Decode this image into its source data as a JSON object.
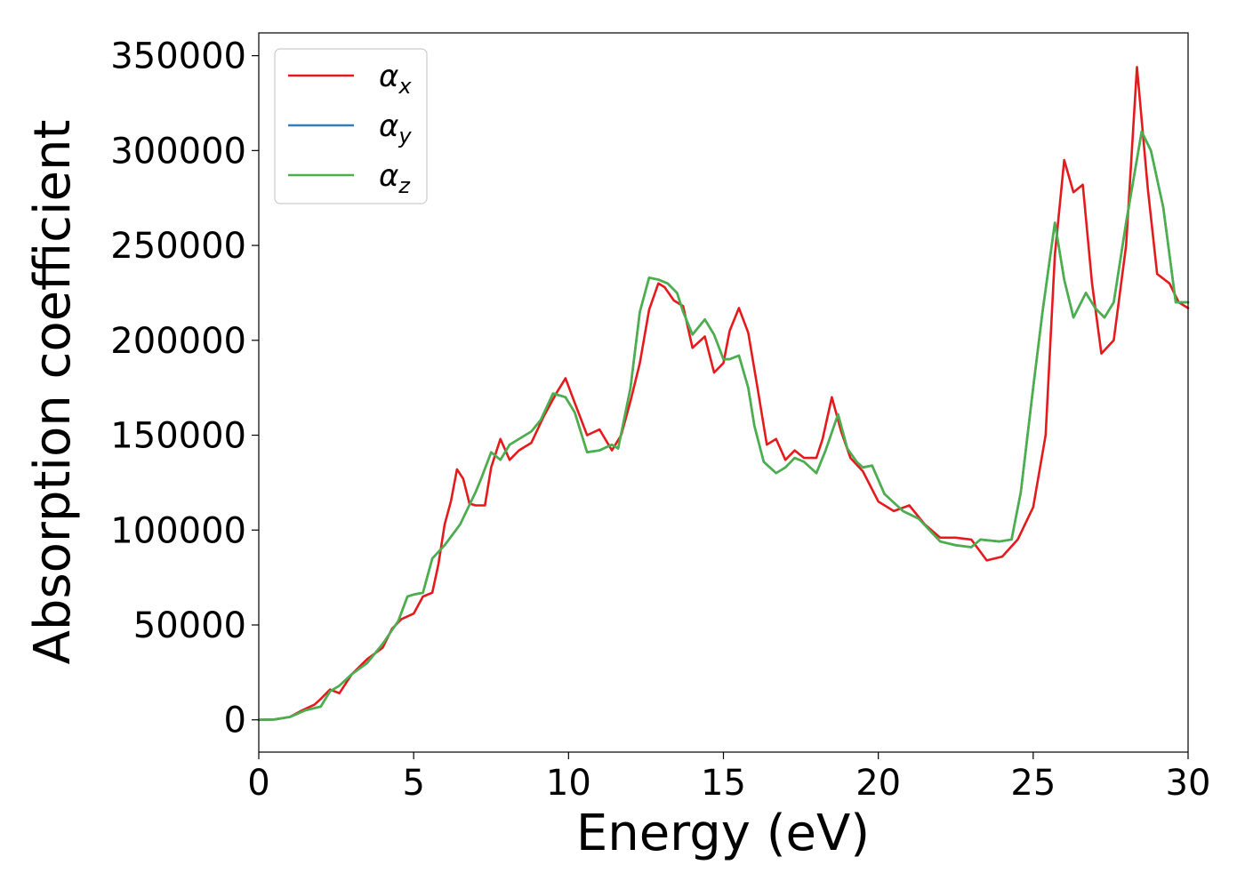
{
  "chart_data": {
    "type": "line",
    "title": "",
    "xlabel": "Energy (eV)",
    "ylabel": "Absorption coefficient",
    "xlim": [
      0,
      30
    ],
    "ylim": [
      -17000,
      362000
    ],
    "xticks": [
      0,
      5,
      10,
      15,
      20,
      25,
      30
    ],
    "yticks": [
      0,
      50000,
      100000,
      150000,
      200000,
      250000,
      300000,
      350000
    ],
    "xtick_labels": [
      "0",
      "5",
      "10",
      "15",
      "20",
      "25",
      "30"
    ],
    "ytick_labels": [
      "0",
      "50000",
      "100000",
      "150000",
      "200000",
      "250000",
      "300000",
      "350000"
    ],
    "grid": false,
    "legend_position": "top-left",
    "series": [
      {
        "name": "α_x",
        "label_main": "α",
        "label_sub": "x",
        "color": "#e41a1c",
        "x": [
          0,
          0.5,
          1.0,
          1.4,
          1.8,
          2.0,
          2.3,
          2.6,
          3.0,
          3.5,
          4.0,
          4.3,
          4.6,
          5.0,
          5.3,
          5.6,
          5.8,
          6.0,
          6.2,
          6.4,
          6.6,
          6.8,
          7.0,
          7.3,
          7.5,
          7.8,
          8.1,
          8.4,
          8.8,
          9.2,
          9.6,
          9.9,
          10.2,
          10.6,
          11.0,
          11.4,
          11.7,
          12.0,
          12.3,
          12.6,
          12.9,
          13.1,
          13.4,
          13.7,
          14.0,
          14.4,
          14.7,
          15.0,
          15.2,
          15.5,
          15.8,
          16.1,
          16.4,
          16.7,
          17.0,
          17.3,
          17.6,
          18.0,
          18.2,
          18.5,
          18.8,
          19.1,
          19.5,
          20.0,
          20.5,
          21.0,
          21.5,
          22.0,
          22.5,
          23.0,
          23.5,
          24.0,
          24.5,
          25.0,
          25.4,
          25.7,
          26.0,
          26.3,
          26.6,
          26.9,
          27.2,
          27.6,
          28.0,
          28.35,
          28.7,
          29.0,
          29.4,
          29.7,
          30.0
        ],
        "values": [
          0,
          200,
          1500,
          5000,
          8000,
          11000,
          16000,
          14000,
          24000,
          32000,
          38000,
          48000,
          53000,
          56000,
          65000,
          67000,
          82000,
          103000,
          115000,
          132000,
          127000,
          114000,
          113000,
          113000,
          133000,
          148000,
          137000,
          142000,
          146000,
          160000,
          172000,
          180000,
          167000,
          150000,
          153000,
          142000,
          150000,
          168000,
          188000,
          216000,
          230000,
          228000,
          221000,
          218000,
          196000,
          202000,
          183000,
          188000,
          205000,
          217000,
          204000,
          175000,
          145000,
          148000,
          137000,
          142000,
          138000,
          138000,
          148000,
          170000,
          152000,
          138000,
          131000,
          115000,
          110000,
          113000,
          103000,
          96000,
          96000,
          95000,
          84000,
          86000,
          95000,
          112000,
          150000,
          245000,
          295000,
          278000,
          282000,
          230000,
          193000,
          200000,
          250000,
          344000,
          280000,
          235000,
          230000,
          220000,
          217000
        ]
      },
      {
        "name": "α_y",
        "label_main": "α",
        "label_sub": "y",
        "color": "#377eb8",
        "x": [
          0,
          0.5,
          1.0,
          1.5,
          2.0,
          2.3,
          2.6,
          3.0,
          3.5,
          4.0,
          4.5,
          4.8,
          5.0,
          5.3,
          5.6,
          6.0,
          6.5,
          7.0,
          7.2,
          7.5,
          7.8,
          8.1,
          8.4,
          8.8,
          9.1,
          9.5,
          9.9,
          10.2,
          10.6,
          11.0,
          11.4,
          11.6,
          12.0,
          12.3,
          12.6,
          12.9,
          13.2,
          13.5,
          13.7,
          14.0,
          14.4,
          14.7,
          15.0,
          15.2,
          15.5,
          15.8,
          16.0,
          16.3,
          16.7,
          17.0,
          17.3,
          17.6,
          18.0,
          18.3,
          18.7,
          19.0,
          19.3,
          19.5,
          19.8,
          20.2,
          20.8,
          21.3,
          22.0,
          22.5,
          23.0,
          23.3,
          23.9,
          24.3,
          24.6,
          25.0,
          25.3,
          25.7,
          26.0,
          26.3,
          26.7,
          27.0,
          27.3,
          27.6,
          28.0,
          28.5,
          28.8,
          29.2,
          29.6,
          30.0
        ],
        "values": [
          0,
          200,
          1500,
          5000,
          7000,
          15000,
          18000,
          24000,
          30000,
          40000,
          52000,
          65000,
          66000,
          67000,
          85000,
          92000,
          103000,
          120000,
          128000,
          141000,
          137000,
          145000,
          148000,
          152000,
          158000,
          172000,
          170000,
          162000,
          141000,
          142000,
          145000,
          143000,
          175000,
          215000,
          233000,
          232000,
          230000,
          225000,
          215000,
          203000,
          211000,
          203000,
          190000,
          190000,
          192000,
          175000,
          155000,
          136000,
          130000,
          133000,
          138000,
          136000,
          130000,
          142000,
          161000,
          143000,
          136000,
          133000,
          134000,
          119000,
          110000,
          106000,
          94000,
          92000,
          91000,
          95000,
          94000,
          95000,
          120000,
          175000,
          215000,
          262000,
          232000,
          212000,
          225000,
          217000,
          212000,
          220000,
          262000,
          310000,
          300000,
          270000,
          220000,
          220000
        ]
      },
      {
        "name": "α_z",
        "label_main": "α",
        "label_sub": "z",
        "color": "#4daf4a",
        "x": [
          0,
          0.5,
          1.0,
          1.5,
          2.0,
          2.3,
          2.6,
          3.0,
          3.5,
          4.0,
          4.5,
          4.8,
          5.0,
          5.3,
          5.6,
          6.0,
          6.5,
          7.0,
          7.2,
          7.5,
          7.8,
          8.1,
          8.4,
          8.8,
          9.1,
          9.5,
          9.9,
          10.2,
          10.6,
          11.0,
          11.4,
          11.6,
          12.0,
          12.3,
          12.6,
          12.9,
          13.2,
          13.5,
          13.7,
          14.0,
          14.4,
          14.7,
          15.0,
          15.2,
          15.5,
          15.8,
          16.0,
          16.3,
          16.7,
          17.0,
          17.3,
          17.6,
          18.0,
          18.3,
          18.7,
          19.0,
          19.3,
          19.5,
          19.8,
          20.2,
          20.8,
          21.3,
          22.0,
          22.5,
          23.0,
          23.3,
          23.9,
          24.3,
          24.6,
          25.0,
          25.3,
          25.7,
          26.0,
          26.3,
          26.7,
          27.0,
          27.3,
          27.6,
          28.0,
          28.5,
          28.8,
          29.2,
          29.6,
          30.0
        ],
        "values": [
          0,
          200,
          1500,
          5000,
          7000,
          15000,
          18000,
          24000,
          30000,
          40000,
          52000,
          65000,
          66000,
          67000,
          85000,
          92000,
          103000,
          120000,
          128000,
          141000,
          137000,
          145000,
          148000,
          152000,
          158000,
          172000,
          170000,
          162000,
          141000,
          142000,
          145000,
          143000,
          175000,
          215000,
          233000,
          232000,
          230000,
          225000,
          215000,
          203000,
          211000,
          203000,
          190000,
          190000,
          192000,
          175000,
          155000,
          136000,
          130000,
          133000,
          138000,
          136000,
          130000,
          142000,
          161000,
          143000,
          136000,
          133000,
          134000,
          119000,
          110000,
          106000,
          94000,
          92000,
          91000,
          95000,
          94000,
          95000,
          120000,
          175000,
          215000,
          262000,
          232000,
          212000,
          225000,
          217000,
          212000,
          220000,
          262000,
          310000,
          300000,
          270000,
          220000,
          220000
        ]
      }
    ]
  }
}
